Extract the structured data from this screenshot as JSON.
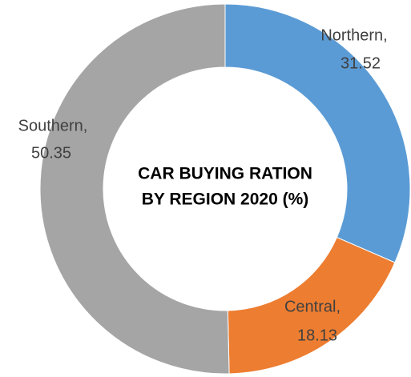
{
  "chart_data": {
    "type": "donut",
    "title": [
      "CAR BUYING RATION",
      "BY REGION 2020 (%)"
    ],
    "categories": [
      "Northern,",
      "Central,",
      "Southern,"
    ],
    "values": [
      31.52,
      18.13,
      50.35
    ],
    "colors": [
      "#5b9bd5",
      "#ed7d31",
      "#a5a5a5"
    ]
  }
}
